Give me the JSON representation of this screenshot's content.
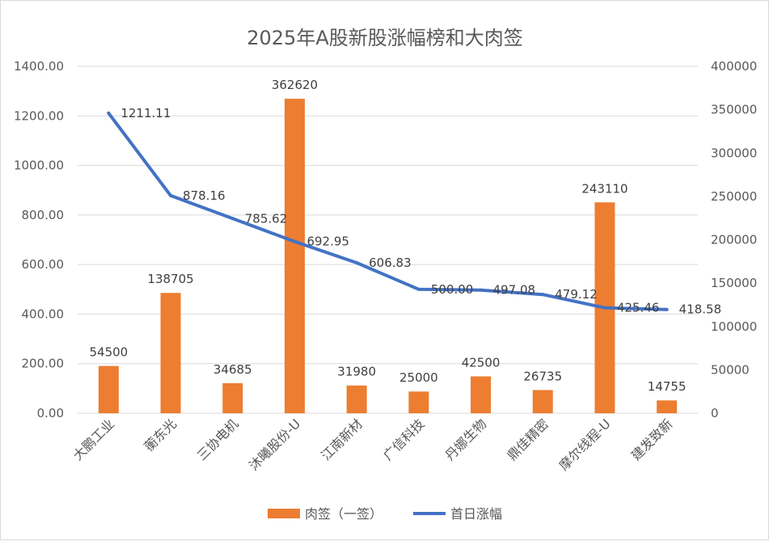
{
  "chart_data": {
    "type": "bar+line",
    "title": "2025年A股新股涨幅榜和大肉签",
    "categories": [
      "大鹏工业",
      "蘅东光",
      "三协电机",
      "沐曦股份-U",
      "江南新材",
      "广信科技",
      "丹娜生物",
      "鼎佳精密",
      "摩尔线程-U",
      "建发致新"
    ],
    "series": [
      {
        "name": "肉签（一签）",
        "type": "bar",
        "axis": "right",
        "color": "#ED7D31",
        "values": [
          54500,
          138705,
          34685,
          362620,
          31980,
          25000,
          42500,
          26735,
          243110,
          14755
        ],
        "labels": [
          "54500",
          "138705",
          "34685",
          "362620",
          "31980",
          "25000",
          "42500",
          "26735",
          "243110",
          "14755"
        ]
      },
      {
        "name": "首日涨幅",
        "type": "line",
        "axis": "left",
        "color": "#4472C4",
        "values": [
          1211.11,
          878.16,
          785.62,
          692.95,
          606.83,
          500.0,
          497.08,
          479.12,
          425.46,
          418.58
        ],
        "labels": [
          "1211.11",
          "878.16",
          "785.62",
          "692.95",
          "606.83",
          "500.00",
          "497.08",
          "479.12",
          "425.46",
          "418.58"
        ]
      }
    ],
    "y_left": {
      "min": 0,
      "max": 1400,
      "step": 200,
      "ticks": [
        "0.00",
        "200.00",
        "400.00",
        "600.00",
        "800.00",
        "1000.00",
        "1200.00",
        "1400.00"
      ]
    },
    "y_right": {
      "min": 0,
      "max": 400000,
      "step": 50000,
      "ticks": [
        "0",
        "50000",
        "100000",
        "150000",
        "200000",
        "250000",
        "300000",
        "350000",
        "400000"
      ]
    },
    "grid": true,
    "legend_position": "bottom"
  }
}
